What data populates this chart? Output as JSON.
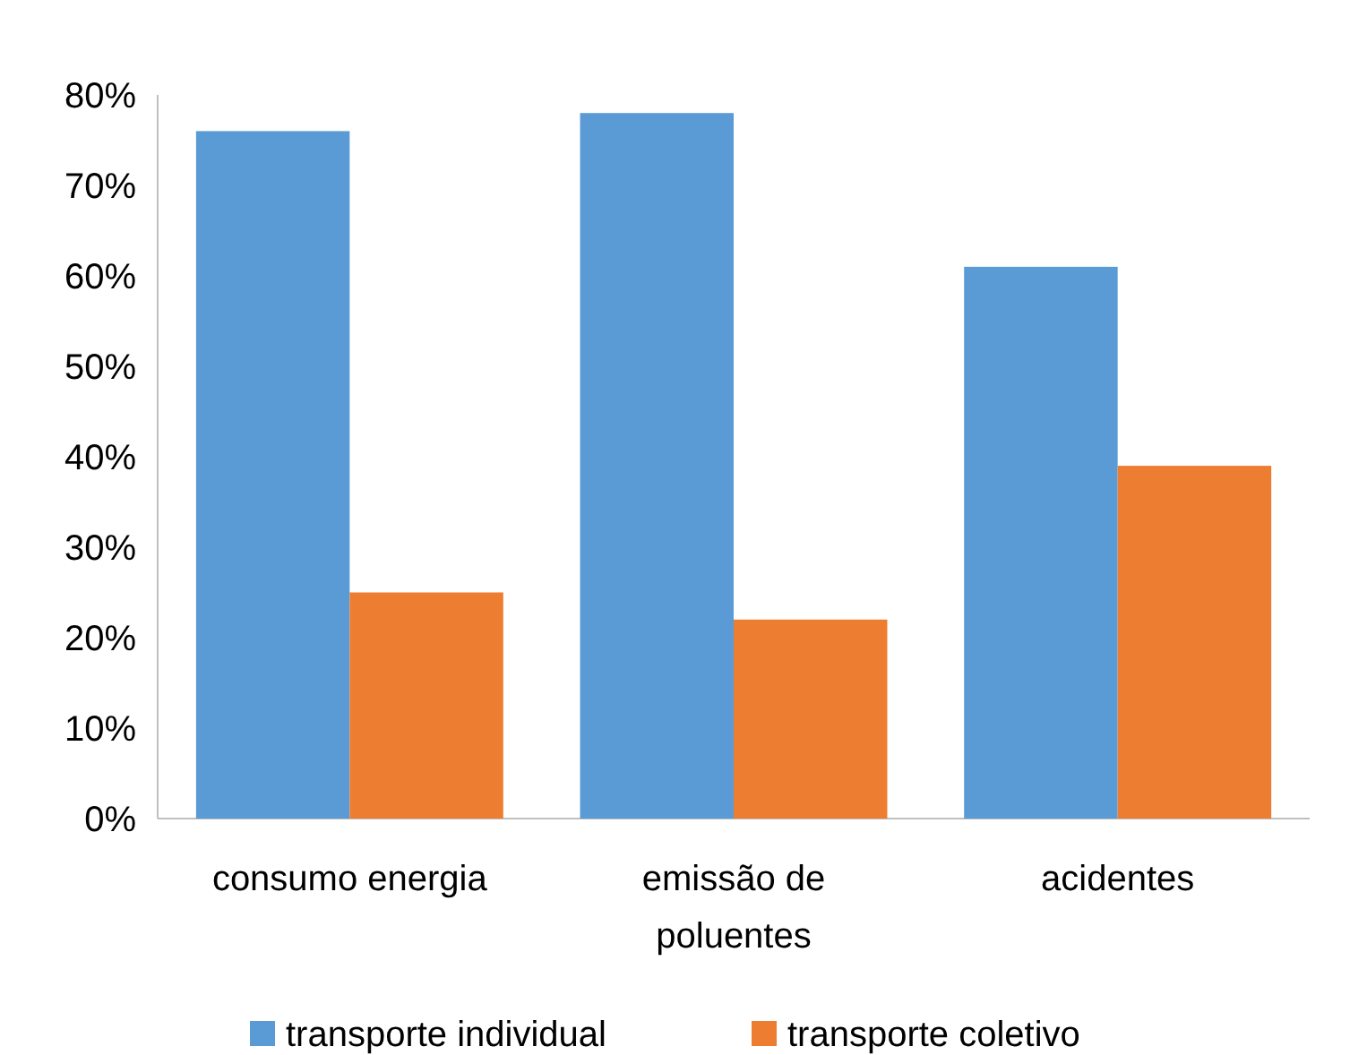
{
  "chart_data": {
    "type": "bar",
    "categories": [
      "consumo energia",
      "emissão de poluentes",
      "acidentes"
    ],
    "series": [
      {
        "name": "transporte individual",
        "color": "#5b9bd5",
        "values": [
          76,
          78,
          61
        ]
      },
      {
        "name": "transporte coletivo",
        "color": "#ed7d31",
        "values": [
          25,
          22,
          39
        ]
      }
    ],
    "ylim": [
      0,
      80
    ],
    "yticks": [
      {
        "value": 0,
        "label": "0%"
      },
      {
        "value": 10,
        "label": "10%"
      },
      {
        "value": 20,
        "label": "20%"
      },
      {
        "value": 30,
        "label": "30%"
      },
      {
        "value": 40,
        "label": "40%"
      },
      {
        "value": 50,
        "label": "50%"
      },
      {
        "value": 60,
        "label": "60%"
      },
      {
        "value": 70,
        "label": "70%"
      },
      {
        "value": 80,
        "label": "80%"
      }
    ],
    "grid": false,
    "legend": "bottom"
  }
}
